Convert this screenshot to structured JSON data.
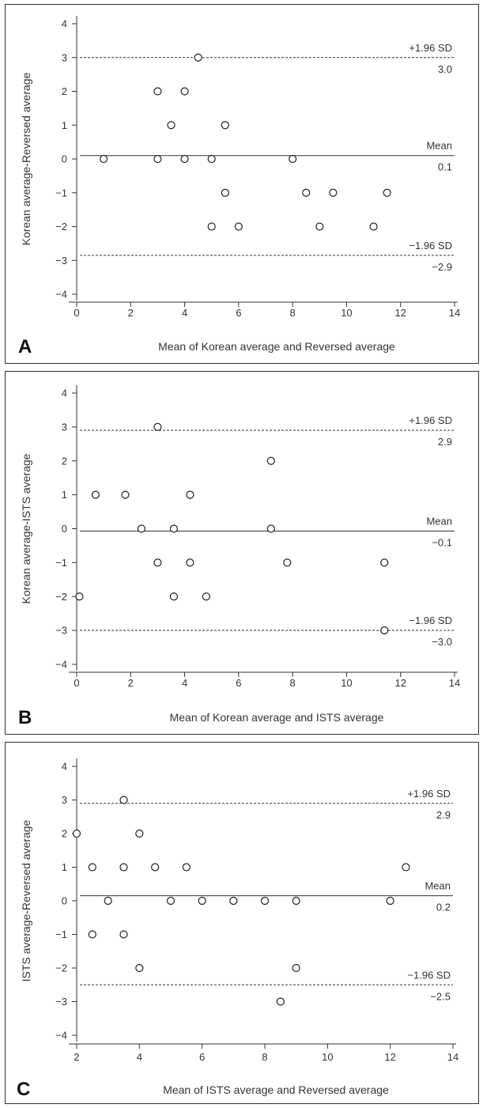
{
  "chart_data": [
    {
      "type": "scatter",
      "panel_label": "A",
      "xlabel": "Mean of Korean average and Reversed average",
      "ylabel": "Korean average-Reversed average",
      "xlim": [
        0,
        14
      ],
      "ylim": [
        -4,
        4
      ],
      "xticks": [
        0,
        2,
        4,
        6,
        8,
        10,
        12,
        14
      ],
      "yticks": [
        4,
        3,
        2,
        1,
        0,
        -1,
        -2,
        -3,
        -4
      ],
      "ytick_labels": [
        "4",
        "3",
        "2",
        "1",
        "0",
        "−1",
        "−2",
        "−3",
        "−4"
      ],
      "reference_lines": [
        {
          "name": "+1.96 SD",
          "value": 3.0,
          "value_label": "3.0",
          "style": "dashed"
        },
        {
          "name": "Mean",
          "value": 0.1,
          "value_label": "0.1",
          "style": "solid"
        },
        {
          "name": "−1.96 SD",
          "value": -2.85,
          "value_label": "−2.9",
          "style": "dashed"
        }
      ],
      "points": [
        {
          "x": 1.0,
          "y": 0
        },
        {
          "x": 3.0,
          "y": 2
        },
        {
          "x": 3.0,
          "y": 0
        },
        {
          "x": 3.5,
          "y": 1
        },
        {
          "x": 4.0,
          "y": 2
        },
        {
          "x": 4.0,
          "y": 0
        },
        {
          "x": 4.5,
          "y": 3
        },
        {
          "x": 5.0,
          "y": 0
        },
        {
          "x": 5.0,
          "y": -2
        },
        {
          "x": 5.5,
          "y": 1
        },
        {
          "x": 5.5,
          "y": -1
        },
        {
          "x": 6.0,
          "y": -2
        },
        {
          "x": 8.0,
          "y": 0
        },
        {
          "x": 8.5,
          "y": -1
        },
        {
          "x": 9.0,
          "y": -2
        },
        {
          "x": 9.5,
          "y": -1
        },
        {
          "x": 11.0,
          "y": -2
        },
        {
          "x": 11.5,
          "y": -1
        }
      ]
    },
    {
      "type": "scatter",
      "panel_label": "B",
      "xlabel": "Mean of Korean average and ISTS average",
      "ylabel": "Korean average-ISTS average",
      "xlim": [
        0,
        14
      ],
      "ylim": [
        -4,
        4
      ],
      "xticks": [
        0,
        2,
        4,
        6,
        8,
        10,
        12,
        14
      ],
      "yticks": [
        4,
        3,
        2,
        1,
        0,
        -1,
        -2,
        -3,
        -4
      ],
      "ytick_labels": [
        "4",
        "3",
        "2",
        "1",
        "0",
        "−1",
        "−2",
        "−3",
        "−4"
      ],
      "reference_lines": [
        {
          "name": "+1.96 SD",
          "value": 2.9,
          "value_label": "2.9",
          "style": "dashed"
        },
        {
          "name": "Mean",
          "value": -0.07,
          "value_label": "−0.1",
          "style": "solid"
        },
        {
          "name": "−1.96 SD",
          "value": -3.0,
          "value_label": "−3.0",
          "style": "dashed"
        }
      ],
      "points": [
        {
          "x": 0.1,
          "y": -2
        },
        {
          "x": 0.7,
          "y": 1
        },
        {
          "x": 1.8,
          "y": 1
        },
        {
          "x": 2.4,
          "y": 0
        },
        {
          "x": 3.0,
          "y": 3
        },
        {
          "x": 3.0,
          "y": -1
        },
        {
          "x": 3.6,
          "y": 0
        },
        {
          "x": 3.6,
          "y": -2
        },
        {
          "x": 4.2,
          "y": 1
        },
        {
          "x": 4.2,
          "y": -1
        },
        {
          "x": 4.8,
          "y": -2
        },
        {
          "x": 7.2,
          "y": 2
        },
        {
          "x": 7.2,
          "y": 0
        },
        {
          "x": 7.8,
          "y": -1
        },
        {
          "x": 11.4,
          "y": -1
        },
        {
          "x": 11.4,
          "y": -3
        }
      ]
    },
    {
      "type": "scatter",
      "panel_label": "C",
      "xlabel": "Mean of ISTS average and Reversed average",
      "ylabel": "ISTS average-Reversed average",
      "xlim": [
        2,
        14
      ],
      "ylim": [
        -4,
        4
      ],
      "xticks": [
        2,
        4,
        6,
        8,
        10,
        12,
        14
      ],
      "yticks": [
        4,
        3,
        2,
        1,
        0,
        -1,
        -2,
        -3,
        -4
      ],
      "ytick_labels": [
        "4",
        "3",
        "2",
        "1",
        "0",
        "−1",
        "−2",
        "−3",
        "−4"
      ],
      "reference_lines": [
        {
          "name": "+1.96 SD",
          "value": 2.9,
          "value_label": "2.9",
          "style": "dashed"
        },
        {
          "name": "Mean",
          "value": 0.15,
          "value_label": "0.2",
          "style": "solid"
        },
        {
          "name": "−1.96 SD",
          "value": -2.5,
          "value_label": "−2.5",
          "style": "dashed"
        }
      ],
      "points": [
        {
          "x": 2.0,
          "y": 2
        },
        {
          "x": 2.5,
          "y": 1
        },
        {
          "x": 2.5,
          "y": -1
        },
        {
          "x": 3.0,
          "y": 0
        },
        {
          "x": 3.5,
          "y": 3
        },
        {
          "x": 3.5,
          "y": 1
        },
        {
          "x": 3.5,
          "y": -1
        },
        {
          "x": 4.0,
          "y": 2
        },
        {
          "x": 4.0,
          "y": -2
        },
        {
          "x": 4.5,
          "y": 1
        },
        {
          "x": 5.0,
          "y": 0
        },
        {
          "x": 5.5,
          "y": 1
        },
        {
          "x": 6.0,
          "y": 0
        },
        {
          "x": 7.0,
          "y": 0
        },
        {
          "x": 8.0,
          "y": 0
        },
        {
          "x": 8.5,
          "y": -3
        },
        {
          "x": 9.0,
          "y": 0
        },
        {
          "x": 9.0,
          "y": -2
        },
        {
          "x": 12.0,
          "y": 0
        },
        {
          "x": 12.5,
          "y": 1
        }
      ]
    }
  ]
}
